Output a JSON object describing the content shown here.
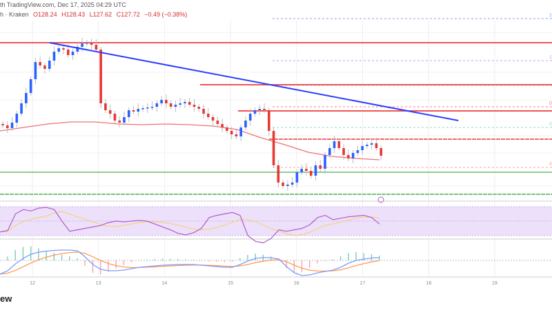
{
  "header": {
    "source_line": "th TradingView.com, Dec 17, 2025 04:29 UTC",
    "symbol": "h · Kraken",
    "open": "O128.24",
    "high": "H128.43",
    "low": "L127.62",
    "close": "C127.72",
    "change": "−0.49 (−0.38%)"
  },
  "logo_text": "ew",
  "colors": {
    "up": "#2962ff",
    "down": "#e53935",
    "trendline": "#2b3cff",
    "resistance": "#f05454",
    "support": "#4caf50",
    "ma": "#f07070",
    "rsi": "#b05cc8",
    "rsi_ma": "#f5d37a",
    "rsi_band": "#ede0fb",
    "macd": "#7b9cff",
    "signal": "#ff9a55",
    "hist_up": "#7fd1b9",
    "hist_down": "#f7a8a8"
  },
  "chart_data": {
    "type": "candlestick",
    "title": "",
    "x_ticks": [
      "12",
      "13",
      "14",
      "15",
      "16",
      "17",
      "18",
      "19"
    ],
    "first_open": 132.3,
    "closes": [
      132.1,
      131.7,
      132.5,
      133.8,
      135.3,
      136.8,
      138.8,
      141.3,
      140.8,
      140.3,
      141.5,
      142.8,
      143.3,
      143.1,
      142.3,
      142.8,
      143.5,
      144.0,
      144.1,
      143.8,
      143.1,
      135.3,
      134.3,
      133.8,
      132.8,
      132.5,
      133.3,
      134.3,
      134.1,
      134.5,
      134.6,
      134.7,
      134.8,
      135.3,
      135.8,
      135.3,
      134.8,
      135.1,
      135.3,
      135.5,
      135.1,
      134.8,
      134.5,
      133.8,
      133.3,
      132.8,
      132.3,
      131.8,
      131.3,
      130.8,
      130.5,
      131.8,
      132.8,
      133.8,
      134.3,
      134.5,
      134.3,
      131.3,
      126.3,
      123.8,
      123.3,
      123.5,
      123.8,
      125.3,
      125.8,
      125.5,
      124.8,
      126.3,
      125.8,
      127.8,
      128.8,
      129.8,
      128.8,
      127.8,
      127.3,
      128.1,
      128.5,
      129.1,
      129.3,
      129.5,
      128.8,
      127.7
    ],
    "moving_average": [
      131.3,
      131.8,
      132.3,
      132.6,
      132.6,
      132.3,
      132.2,
      132.3,
      132.2,
      132.0,
      131.5,
      130.3,
      129.3,
      128.2,
      127.6,
      127.3,
      127.1
    ],
    "horizontal_levels": {
      "resistance": [
        144.1,
        138.0,
        134.2
      ],
      "dashed_resistance": 130.1,
      "support": [
        125.3,
        122.1
      ]
    },
    "trendline": {
      "start": {
        "day": 12.26,
        "price": 144.1
      },
      "end": {
        "day": 18.45,
        "price": 132.8
      }
    },
    "fib_levels": [
      {
        "label": "1.",
        "price": 147.6,
        "color": "#8c9cf0"
      },
      {
        "label": "1.",
        "price": 141.5,
        "color": "#c89ce8"
      },
      {
        "label": "",
        "price": 137.9,
        "color": "#a8c4f0"
      },
      {
        "label": "0",
        "price": 134.8,
        "color": "#f07b8a"
      },
      {
        "label": "0.",
        "price": 131.8,
        "color": "#8fdcc4"
      },
      {
        "label": "0",
        "price": 126.0,
        "color": "#f5a0a0"
      }
    ],
    "rsi": {
      "band": [
        30,
        70
      ],
      "values": [
        35,
        37,
        60,
        66,
        64,
        68,
        69,
        66,
        50,
        36,
        38,
        40,
        42,
        44,
        48,
        50,
        49,
        50,
        51,
        50,
        46,
        42,
        38,
        33,
        31,
        34,
        40,
        55,
        58,
        60,
        62,
        58,
        30,
        22,
        20,
        26,
        38,
        36,
        38,
        40,
        45,
        55,
        58,
        52,
        54,
        56,
        57,
        58,
        55,
        46
      ]
    },
    "macd": {
      "values": [
        -2.0,
        -1.5,
        -0.5,
        0.3,
        0.9,
        1.2,
        1.35,
        1.45,
        1.5,
        1.5,
        1.4,
        0.5,
        -0.6,
        -1.3,
        -1.5,
        -1.5,
        -1.4,
        -1.2,
        -1.0,
        -0.9,
        -0.8,
        -0.7,
        -0.65,
        -0.6,
        -0.6,
        -0.6,
        -0.7,
        -0.8,
        -0.9,
        -1.0,
        -1.0,
        -0.6,
        -0.1,
        0.3,
        0.4,
        0.4,
        0.2,
        -0.9,
        -1.8,
        -2.2,
        -2.1,
        -1.8,
        -1.6,
        -1.4,
        -1.0,
        -0.4,
        0.0,
        0.2,
        0.35,
        0.4
      ]
    }
  }
}
